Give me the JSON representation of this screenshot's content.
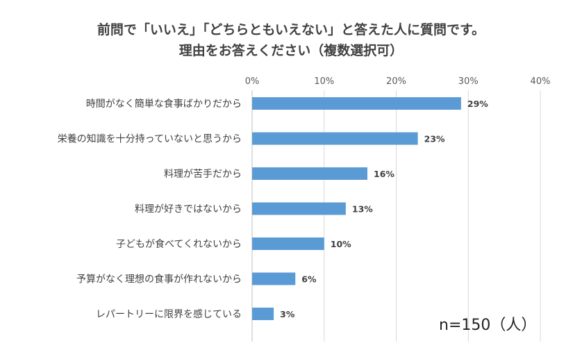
{
  "chart_data": {
    "type": "bar",
    "orientation": "horizontal",
    "title_line1": "前問で「いいえ」「どちらともいえない」と答えた人に質問です。",
    "title_line2": "理由をお答えください（複数選択可）",
    "categories": [
      "時間がなく簡単な食事ばかりだから",
      "栄養の知識を十分持っていないと思うから",
      "料理が苦手だから",
      "料理が好きではないから",
      "子どもが食べてくれないから",
      "予算がなく理想の食事が作れないから",
      "レパートリーに限界を感じている"
    ],
    "values": [
      29,
      23,
      16,
      13,
      10,
      6,
      3
    ],
    "value_labels": [
      "29%",
      "23%",
      "16%",
      "13%",
      "10%",
      "6%",
      "3%"
    ],
    "xlim": [
      0,
      40
    ],
    "x_ticks": [
      "0%",
      "10%",
      "20%",
      "30%",
      "40%"
    ],
    "x_tick_values": [
      0,
      10,
      20,
      30,
      40
    ],
    "gridlines": true,
    "axis_position": "top",
    "bar_color": "#5b9bd5",
    "grid_color": "#d9d9d9",
    "note": "n=150（人）"
  }
}
